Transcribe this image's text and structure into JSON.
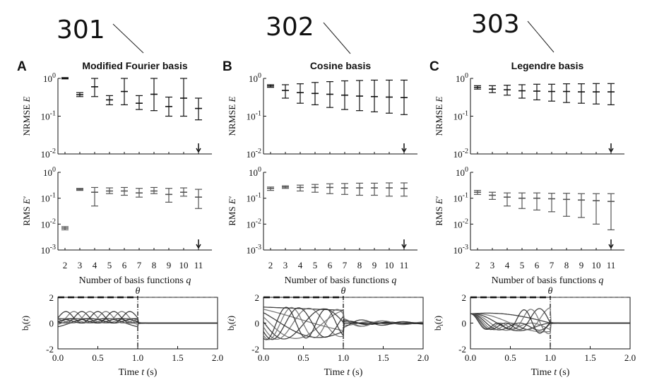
{
  "reference_labels": [
    "301",
    "302",
    "303"
  ],
  "panel_letters": [
    "A",
    "B",
    "C"
  ],
  "panel_titles": [
    "Modified Fourier basis",
    "Cosine basis",
    "Legendre basis"
  ],
  "labels": {
    "nrmse_ylabel": "NRMSE E",
    "rms_ylabel": "RMS E′",
    "q_xlabel": "Number of basis functions q",
    "time_xlabel": "Time t (s)",
    "basis_ylabel": "b_i(t)",
    "theta": "θ"
  },
  "ticks": {
    "q": [
      "2",
      "3",
      "4",
      "5",
      "6",
      "7",
      "8",
      "9",
      "10",
      "11"
    ],
    "nrmse_y": [
      "10^0",
      "10^-1",
      "10^-2"
    ],
    "rms_y": [
      "10^0",
      "10^-1",
      "10^-2",
      "10^-3"
    ],
    "basis_y": [
      "2",
      "0",
      "-2"
    ],
    "time_x": [
      "0.0",
      "0.5",
      "1.0",
      "1.5",
      "2.0"
    ]
  },
  "chart_data": [
    {
      "type": "errorbar",
      "panel": "A",
      "title": "Modified Fourier basis",
      "xlabel": "Number of basis functions q",
      "q": [
        2,
        3,
        4,
        5,
        6,
        7,
        8,
        9,
        10,
        11
      ],
      "nrmse": {
        "ylabel": "NRMSE E",
        "yscale": "log",
        "ylim": [
          0.01,
          1
        ],
        "median": [
          1.0,
          0.37,
          0.6,
          0.27,
          0.45,
          0.22,
          0.38,
          0.18,
          0.3,
          0.16
        ],
        "low": [
          0.97,
          0.33,
          0.33,
          0.2,
          0.2,
          0.15,
          0.14,
          0.1,
          0.1,
          0.08
        ],
        "high": [
          1.05,
          0.42,
          1.0,
          0.35,
          1.0,
          0.35,
          1.0,
          0.32,
          1.0,
          0.3
        ],
        "arrow_at_q": 11
      },
      "rms": {
        "ylabel": "RMS E′",
        "yscale": "log",
        "ylim": [
          0.001,
          1
        ],
        "median": [
          0.007,
          0.22,
          0.17,
          0.19,
          0.19,
          0.16,
          0.19,
          0.14,
          0.17,
          0.11
        ],
        "low": [
          0.006,
          0.2,
          0.05,
          0.15,
          0.13,
          0.11,
          0.15,
          0.07,
          0.12,
          0.04
        ],
        "high": [
          0.008,
          0.24,
          0.26,
          0.25,
          0.26,
          0.24,
          0.26,
          0.24,
          0.25,
          0.22
        ],
        "arrow_at_q": 11
      },
      "basis": {
        "ylabel": "b_i(t)",
        "xlabel": "Time t (s)",
        "xlim": [
          0,
          2
        ],
        "ylim": [
          -2,
          2
        ],
        "theta": 1.0,
        "dashed_level": 2.0,
        "tail": "flat"
      }
    },
    {
      "type": "errorbar",
      "panel": "B",
      "title": "Cosine basis",
      "xlabel": "Number of basis functions q",
      "q": [
        2,
        3,
        4,
        5,
        6,
        7,
        8,
        9,
        10,
        11
      ],
      "nrmse": {
        "ylabel": "NRMSE E",
        "yscale": "log",
        "ylim": [
          0.01,
          1
        ],
        "median": [
          0.63,
          0.48,
          0.42,
          0.4,
          0.38,
          0.36,
          0.34,
          0.33,
          0.32,
          0.31
        ],
        "low": [
          0.58,
          0.3,
          0.22,
          0.2,
          0.17,
          0.15,
          0.14,
          0.13,
          0.12,
          0.11
        ],
        "high": [
          0.68,
          0.68,
          0.72,
          0.78,
          0.82,
          0.86,
          0.88,
          0.9,
          0.9,
          0.9
        ],
        "arrow_at_q": 11
      },
      "rms": {
        "ylabel": "RMS E′",
        "yscale": "log",
        "ylim": [
          0.001,
          1
        ],
        "median": [
          0.24,
          0.27,
          0.26,
          0.26,
          0.26,
          0.25,
          0.25,
          0.25,
          0.25,
          0.24
        ],
        "low": [
          0.2,
          0.24,
          0.19,
          0.17,
          0.15,
          0.14,
          0.13,
          0.13,
          0.12,
          0.12
        ],
        "high": [
          0.27,
          0.3,
          0.32,
          0.34,
          0.36,
          0.37,
          0.38,
          0.38,
          0.39,
          0.39
        ],
        "arrow_at_q": 11
      },
      "basis": {
        "ylabel": "b_i(t)",
        "xlabel": "Time t (s)",
        "xlim": [
          0,
          2
        ],
        "ylim": [
          -2,
          2
        ],
        "theta": 1.0,
        "dashed_level": 2.0,
        "tail": "ringing"
      }
    },
    {
      "type": "errorbar",
      "panel": "C",
      "title": "Legendre basis",
      "xlabel": "Number of basis functions q",
      "q": [
        2,
        3,
        4,
        5,
        6,
        7,
        8,
        9,
        10,
        11
      ],
      "nrmse": {
        "ylabel": "NRMSE E",
        "yscale": "log",
        "ylim": [
          0.01,
          1
        ],
        "median": [
          0.58,
          0.52,
          0.5,
          0.47,
          0.46,
          0.45,
          0.45,
          0.44,
          0.44,
          0.44
        ],
        "low": [
          0.52,
          0.42,
          0.36,
          0.3,
          0.27,
          0.25,
          0.23,
          0.22,
          0.21,
          0.2
        ],
        "high": [
          0.64,
          0.64,
          0.66,
          0.68,
          0.7,
          0.7,
          0.72,
          0.72,
          0.73,
          0.73
        ],
        "arrow_at_q": 11
      },
      "rms": {
        "ylabel": "RMS E′",
        "yscale": "log",
        "ylim": [
          0.001,
          1
        ],
        "median": [
          0.17,
          0.13,
          0.11,
          0.1,
          0.1,
          0.095,
          0.09,
          0.085,
          0.08,
          0.075
        ],
        "low": [
          0.14,
          0.09,
          0.05,
          0.04,
          0.035,
          0.03,
          0.02,
          0.018,
          0.01,
          0.006
        ],
        "high": [
          0.2,
          0.17,
          0.16,
          0.16,
          0.16,
          0.155,
          0.155,
          0.15,
          0.15,
          0.15
        ],
        "arrow_at_q": 11
      },
      "basis": {
        "ylabel": "b_i(t)",
        "xlabel": "Time t (s)",
        "xlim": [
          0,
          2
        ],
        "ylim": [
          -2,
          2
        ],
        "theta": 1.0,
        "dashed_level": 2.0,
        "tail": "flat"
      }
    }
  ]
}
